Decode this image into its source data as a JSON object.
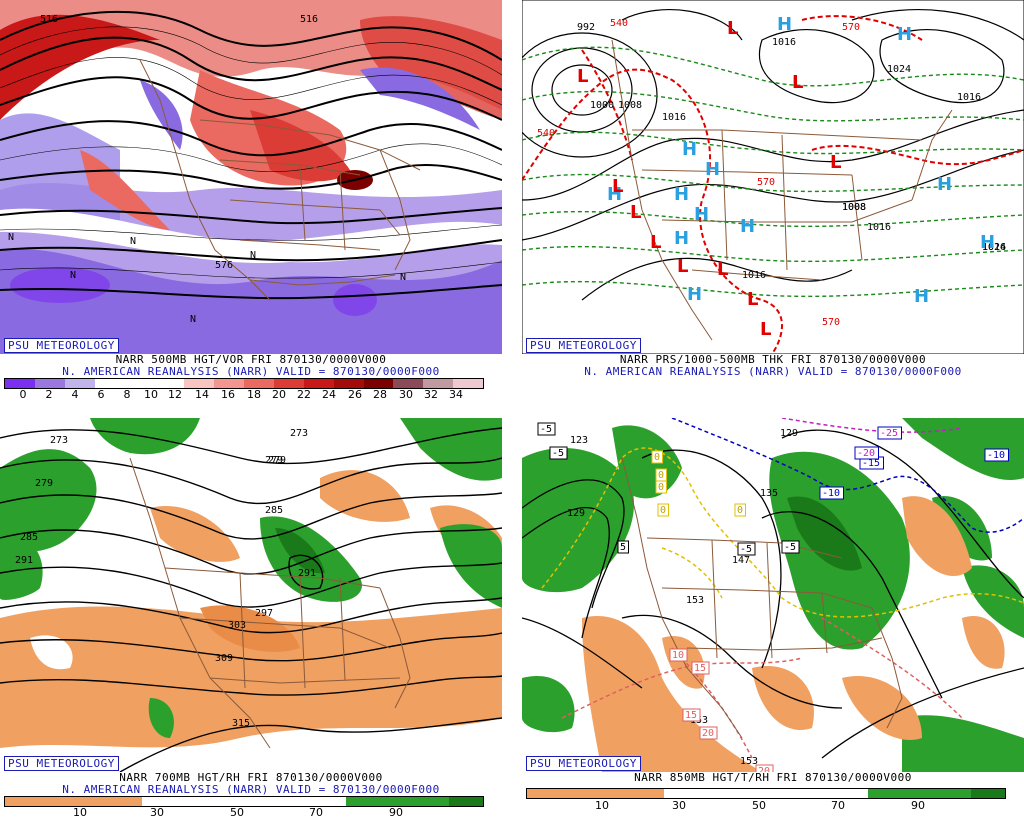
{
  "panels": [
    {
      "id": "vorticity",
      "psu": "PSU METEOROLOGY",
      "title_line1": "NARR 500MB HGT/VOR FRI 870130/0000V000",
      "title_line2": "N. AMERICAN REANALYSIS (NARR) VALID = 870130/0000F000",
      "labels": [
        "516",
        "516",
        "576",
        "N",
        "N",
        "N",
        "N",
        "N",
        "N"
      ],
      "colorbar_colors": [
        "#7b2ff0",
        "#9b77e0",
        "#c0b4ea",
        "#ffffff",
        "#ffffff",
        "#ffffff",
        "#f7c6c0",
        "#f39690",
        "#ea6a62",
        "#dc3c36",
        "#c81818",
        "#a40c0c",
        "#7c0000",
        "#8c4a58",
        "#c09aa0",
        "#f0c8d0"
      ],
      "ticks": [
        "0",
        "2",
        "4",
        "6",
        "8",
        "10",
        "12",
        "14",
        "16",
        "18",
        "20",
        "22",
        "24",
        "26",
        "28",
        "30",
        "32",
        "34"
      ]
    },
    {
      "id": "pressure",
      "psu": "PSU METEOROLOGY",
      "title_line1": "NARR PRS/1000-500MB THK FRI 870130/0000V000",
      "title_line2": "N. AMERICAN REANALYSIS (NARR) VALID = 870130/0000F000",
      "labels": [
        "992",
        "1000",
        "1008",
        "1016",
        "1016",
        "1024",
        "1016",
        "1008",
        "1008",
        "1016",
        "1016",
        "1016",
        "1024",
        "540",
        "570",
        "570",
        "570",
        "540"
      ],
      "highs": [
        "H",
        "H",
        "H",
        "H",
        "H",
        "H",
        "H",
        "H",
        "H",
        "H",
        "H",
        "H",
        "H"
      ],
      "lows": [
        "L",
        "L",
        "L",
        "L",
        "L",
        "L",
        "L",
        "L",
        "L",
        "L",
        "L"
      ]
    },
    {
      "id": "rh700",
      "psu": "PSU METEOROLOGY",
      "title_line1": "NARR 700MB HGT/RH FRI 870130/0000V000",
      "title_line2": "N. AMERICAN REANALYSIS (NARR) VALID = 870130/0000F000",
      "labels": [
        "273",
        "279",
        "279",
        "279",
        "285",
        "291",
        "285",
        "291",
        "297",
        "303",
        "309",
        "315",
        "273"
      ],
      "colorbar_colors": [
        "#f0a060",
        "#f0a060",
        "#f0a060",
        "#f0a060",
        "#ffffff",
        "#ffffff",
        "#ffffff",
        "#ffffff",
        "#ffffff",
        "#ffffff",
        "#2ca02c",
        "#2ca02c",
        "#2ca02c",
        "#1a7a1a"
      ],
      "ticks": [
        "10",
        "30",
        "50",
        "70",
        "90"
      ]
    },
    {
      "id": "temp850",
      "psu": "PSU METEOROLOGY",
      "title_line1": "NARR 850MB HGT/T/RH FRI 870130/0000V000",
      "title_line2": "",
      "labels": [
        "123",
        "129",
        "129",
        "135",
        "147",
        "153",
        "153",
        "153",
        "-5",
        "-5",
        "-5",
        "-5",
        "-10",
        "-10",
        "-15",
        "-20",
        "-25",
        "5",
        "10",
        "15",
        "15",
        "20",
        "20",
        "0",
        "0",
        "0",
        "0",
        "0"
      ],
      "colorbar_colors": [
        "#f0a060",
        "#f0a060",
        "#f0a060",
        "#f0a060",
        "#ffffff",
        "#ffffff",
        "#ffffff",
        "#ffffff",
        "#ffffff",
        "#ffffff",
        "#2ca02c",
        "#2ca02c",
        "#2ca02c",
        "#1a7a1a"
      ],
      "ticks": [
        "10",
        "30",
        "50",
        "70",
        "90"
      ]
    }
  ]
}
